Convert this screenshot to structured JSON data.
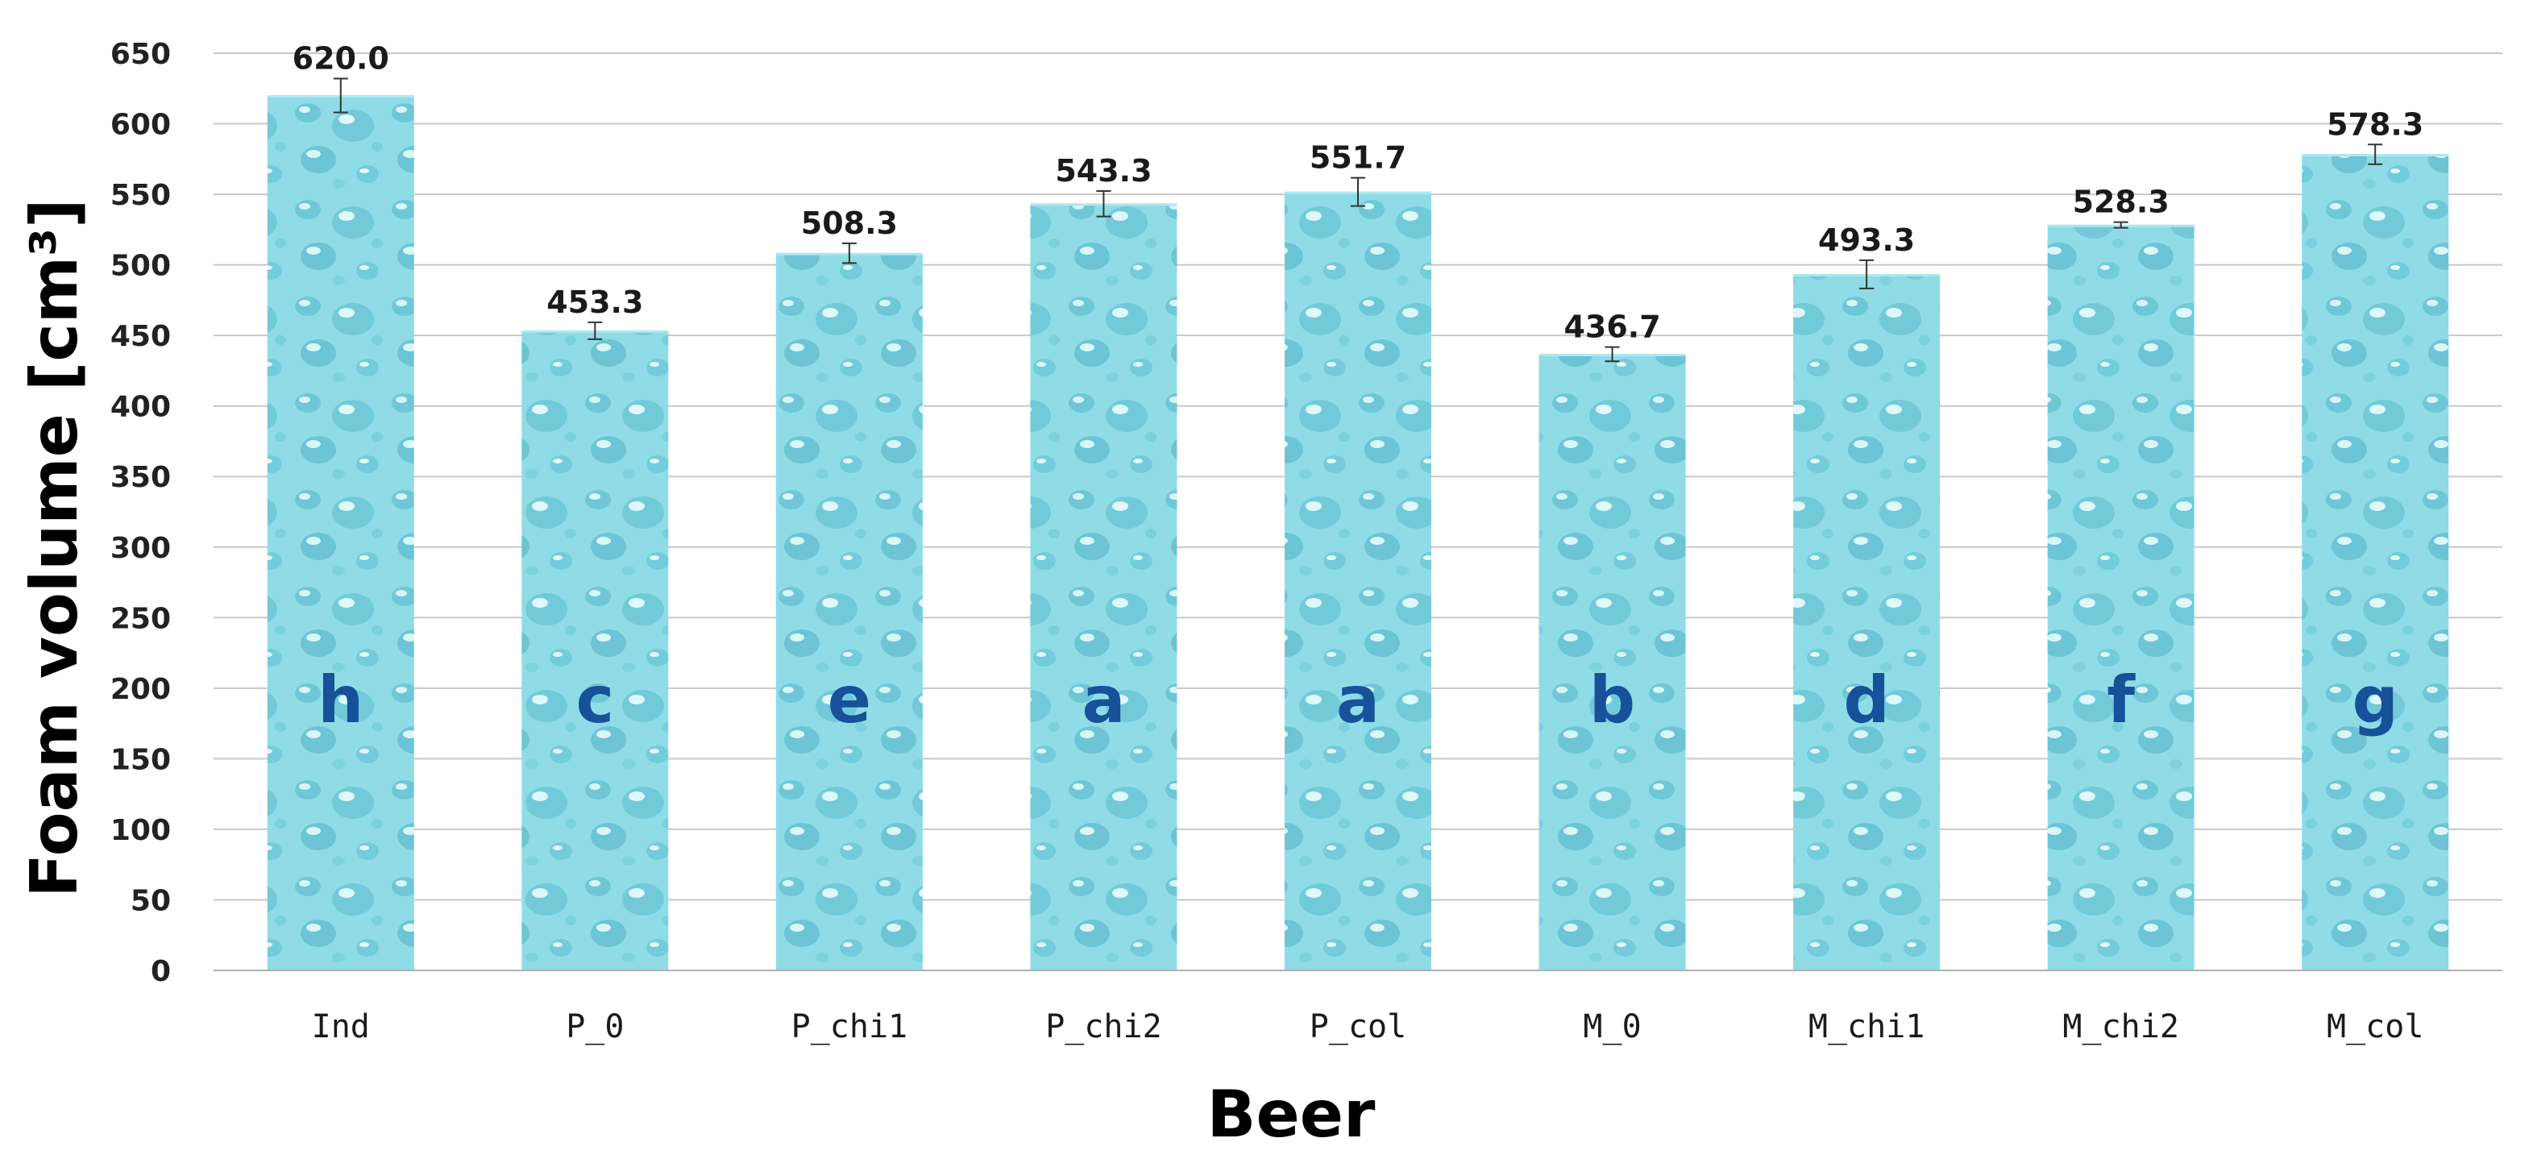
{
  "chart_data": {
    "type": "bar",
    "title": "",
    "xlabel": "Beer",
    "ylabel": "Foam volume [cm³]",
    "ylim": [
      0,
      650
    ],
    "yticks": [
      0,
      50,
      100,
      150,
      200,
      250,
      300,
      350,
      400,
      450,
      500,
      550,
      600,
      650
    ],
    "grid": true,
    "categories": [
      "Ind",
      "P_0",
      "P_chi1",
      "P_chi2",
      "P_col",
      "M_0",
      "M_chi1",
      "M_chi2",
      "M_col"
    ],
    "values": [
      620.0,
      453.3,
      508.3,
      543.3,
      551.7,
      436.7,
      493.3,
      528.3,
      578.3
    ],
    "value_labels": [
      "620.0",
      "453.3",
      "508.3",
      "543.3",
      "551.7",
      "436.7",
      "493.3",
      "528.3",
      "578.3"
    ],
    "errors": [
      12,
      6,
      7,
      9,
      10,
      5,
      10,
      2,
      7
    ],
    "group_letters": [
      "h",
      "c",
      "e",
      "a",
      "a",
      "b",
      "d",
      "f",
      "g"
    ],
    "bar_color": "#8fdce6",
    "letter_color": "#17519a"
  }
}
